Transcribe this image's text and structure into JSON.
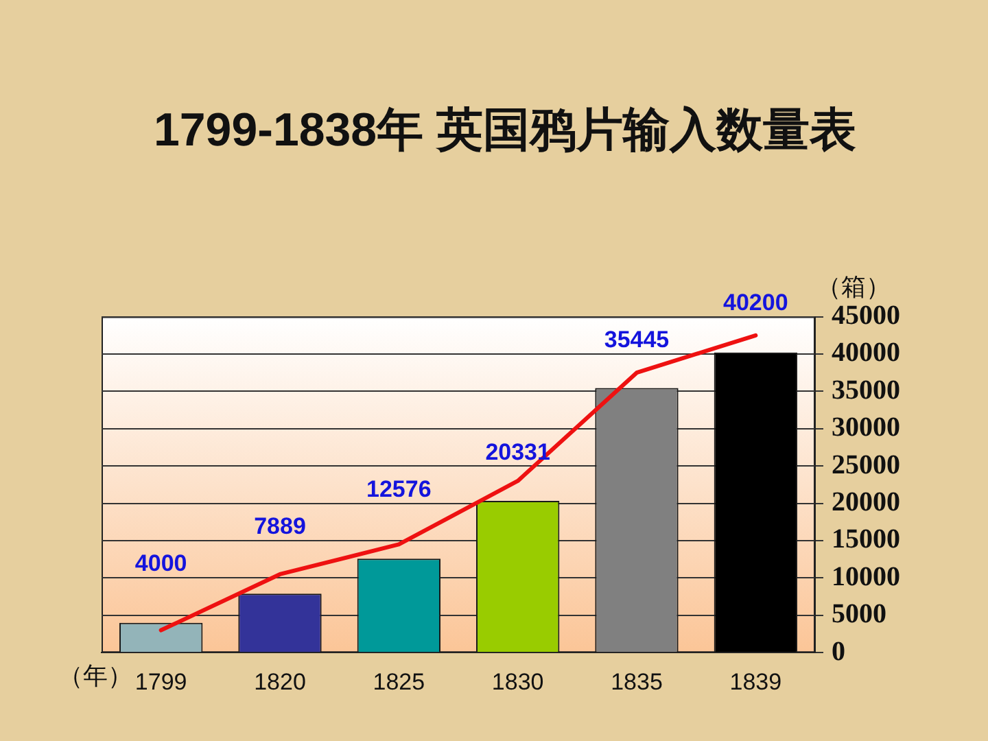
{
  "chart_data": {
    "type": "bar",
    "title": "1799-1838年 英国鸦片输入数量表",
    "xlabel": "（年）",
    "ylabel": "（箱）",
    "categories": [
      "1799",
      "1820",
      "1825",
      "1830",
      "1835",
      "1839"
    ],
    "series": [
      {
        "colors": [
          "#93b4b9",
          "#333399",
          "#009999",
          "#99cc00",
          "#808080",
          "#000000"
        ],
        "values": [
          4000,
          7889,
          12576,
          20331,
          35445,
          40200
        ],
        "value_labels": [
          "4000",
          "7889",
          "12576",
          "20331",
          "35445",
          "40200"
        ]
      },
      {
        "type": "line",
        "color": "#ee1111",
        "values": [
          3000,
          10500,
          14500,
          23000,
          37500,
          42500
        ]
      }
    ],
    "ylim": [
      0,
      45000
    ],
    "yticks": [
      0,
      5000,
      10000,
      15000,
      20000,
      25000,
      30000,
      35000,
      40000,
      45000
    ],
    "grid": "y",
    "legend": false
  }
}
